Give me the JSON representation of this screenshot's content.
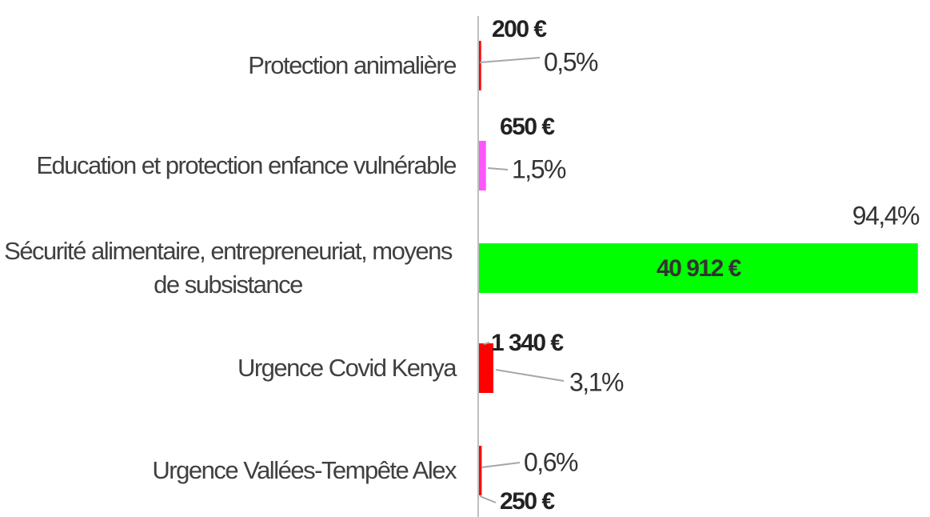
{
  "chart_data": {
    "type": "bar",
    "categories": [
      "Protection animalière",
      "Education et protection enfance vulnérable",
      "Sécurité alimentaire, entrepreneuriat, moyens de subsistance",
      "Urgence Covid Kenya",
      "Urgence Vallées-Tempête Alex"
    ],
    "values": [
      200,
      650,
      40912,
      1340,
      250
    ],
    "value_labels": [
      "200 €",
      "650 €",
      "40 912 €",
      "1 340 €",
      "250 €"
    ],
    "percentages": [
      0.5,
      1.5,
      94.4,
      3.1,
      0.6
    ],
    "percentage_labels": [
      "0,5%",
      "1,5%",
      "94,4%",
      "3,1%",
      "0,6%"
    ],
    "colors": [
      "#ff0000",
      "#ff55ff",
      "#00ff00",
      "#ff0000",
      "#ff0000"
    ],
    "xlim": [
      0,
      41000
    ]
  }
}
